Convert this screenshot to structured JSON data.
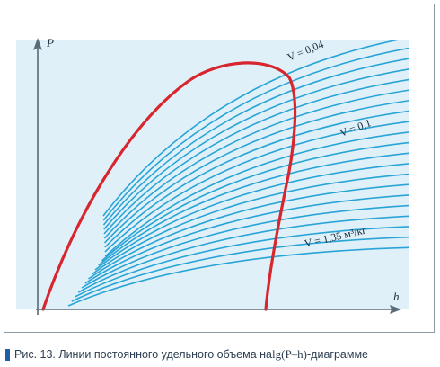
{
  "diagram": {
    "axis_x_label": "h",
    "axis_y_label": "P",
    "labels": {
      "v_top": "V = 0,04",
      "v_mid": "V = 0,1",
      "v_bottom": "V = 1,35 м³/кг"
    },
    "colors": {
      "plot_background": "#dff0f9",
      "isochore_lines": "#29a4d6",
      "saturation_curve": "#d7262e",
      "axes": "#5a6a78"
    },
    "isochore_count": 21
  },
  "caption": {
    "prefix": "Рис. 13. Линии постоянного удельного объема на ",
    "formula": "lg(P–h)",
    "suffix": "-диаграмме"
  }
}
